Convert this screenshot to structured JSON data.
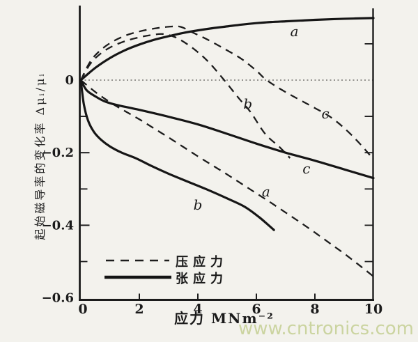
{
  "page": {
    "watermark": "www.cntronics.com"
  },
  "colors": {
    "ink": "#1b1b1b",
    "paper": "#f3f2ed",
    "watermark": "#cbd4a0"
  },
  "chart_data": {
    "type": "line",
    "title": "",
    "xlabel": "应力 MNm⁻²",
    "ylabel": "起始磁导率的变化率 Δμᵢ/μᵢ",
    "xlim": [
      0,
      10
    ],
    "ylim": [
      -0.6,
      0.2
    ],
    "grid": false,
    "zero_line": true,
    "legend_position": "inside-bottom-left",
    "xticks": [
      {
        "v": 0,
        "label": "0"
      },
      {
        "v": 2,
        "label": "2"
      },
      {
        "v": 4,
        "label": "4"
      },
      {
        "v": 6,
        "label": "6"
      },
      {
        "v": 8,
        "label": "8"
      },
      {
        "v": 10,
        "label": "10"
      }
    ],
    "yticks": [
      {
        "v": 0,
        "label": "0"
      },
      {
        "v": -0.2,
        "label": "−0.2"
      },
      {
        "v": -0.4,
        "label": "−0.4"
      },
      {
        "v": -0.6,
        "label": "−0.6"
      }
    ],
    "yticks_minor_left": [
      -0.1,
      -0.3,
      -0.5
    ],
    "yticks_right": [
      0.1,
      -0.1,
      -0.2,
      -0.3,
      -0.4,
      -0.5
    ],
    "legend": [
      {
        "style": "dashed",
        "label": "压应力"
      },
      {
        "style": "solid",
        "label": "张应力"
      }
    ],
    "series": [
      {
        "id": "a-tensile",
        "curve": "a",
        "stress": "张应力",
        "style": "solid",
        "points": [
          [
            0,
            0
          ],
          [
            0.5,
            0.034
          ],
          [
            1,
            0.061
          ],
          [
            1.5,
            0.082
          ],
          [
            2,
            0.098
          ],
          [
            2.5,
            0.111
          ],
          [
            3,
            0.121
          ],
          [
            3.5,
            0.13
          ],
          [
            4,
            0.137
          ],
          [
            4.5,
            0.143
          ],
          [
            5,
            0.148
          ],
          [
            5.5,
            0.153
          ],
          [
            6,
            0.157
          ],
          [
            6.5,
            0.16
          ],
          [
            7,
            0.162
          ],
          [
            7.5,
            0.164
          ],
          [
            8,
            0.166
          ],
          [
            9,
            0.169
          ],
          [
            10,
            0.171
          ]
        ]
      },
      {
        "id": "b-compressive",
        "curve": "b",
        "stress": "压应力",
        "style": "dashed",
        "points": [
          [
            0,
            0
          ],
          [
            0.3,
            0.042
          ],
          [
            0.6,
            0.068
          ],
          [
            1,
            0.09
          ],
          [
            1.5,
            0.107
          ],
          [
            2,
            0.118
          ],
          [
            2.4,
            0.124
          ],
          [
            2.8,
            0.127
          ],
          [
            3.2,
            0.119
          ],
          [
            3.6,
            0.101
          ],
          [
            4,
            0.077
          ],
          [
            4.4,
            0.047
          ],
          [
            4.9,
            0
          ],
          [
            5.4,
            -0.05
          ],
          [
            5.8,
            -0.088
          ],
          [
            6.3,
            -0.148
          ],
          [
            6.8,
            -0.185
          ],
          [
            7.15,
            -0.215
          ]
        ]
      },
      {
        "id": "c-compressive",
        "curve": "c",
        "stress": "压应力",
        "style": "dashed",
        "points": [
          [
            0,
            0
          ],
          [
            0.3,
            0.048
          ],
          [
            0.6,
            0.077
          ],
          [
            1,
            0.102
          ],
          [
            1.5,
            0.122
          ],
          [
            2,
            0.134
          ],
          [
            2.5,
            0.142
          ],
          [
            3,
            0.147
          ],
          [
            3.4,
            0.147
          ],
          [
            3.8,
            0.132
          ],
          [
            4.2,
            0.117
          ],
          [
            4.6,
            0.1
          ],
          [
            5,
            0.082
          ],
          [
            5.5,
            0.058
          ],
          [
            6,
            0.026
          ],
          [
            6.35,
            0
          ],
          [
            7,
            -0.033
          ],
          [
            8,
            -0.077
          ],
          [
            8.5,
            -0.1
          ],
          [
            9,
            -0.132
          ],
          [
            9.5,
            -0.172
          ],
          [
            10,
            -0.218
          ]
        ]
      },
      {
        "id": "a-compressive",
        "curve": "a",
        "stress": "压应力",
        "style": "dashed",
        "points": [
          [
            0,
            0
          ],
          [
            0.5,
            -0.033
          ],
          [
            1,
            -0.061
          ],
          [
            1.5,
            -0.085
          ],
          [
            2,
            -0.108
          ],
          [
            2.5,
            -0.133
          ],
          [
            3,
            -0.158
          ],
          [
            3.5,
            -0.184
          ],
          [
            4,
            -0.21
          ],
          [
            4.5,
            -0.235
          ],
          [
            5,
            -0.26
          ],
          [
            5.5,
            -0.286
          ],
          [
            6,
            -0.312
          ],
          [
            6.5,
            -0.338
          ],
          [
            7,
            -0.365
          ],
          [
            7.5,
            -0.392
          ],
          [
            8,
            -0.42
          ],
          [
            8.5,
            -0.449
          ],
          [
            9,
            -0.478
          ],
          [
            9.5,
            -0.509
          ],
          [
            10,
            -0.541
          ]
        ]
      },
      {
        "id": "b-tensile",
        "curve": "b",
        "stress": "张应力",
        "style": "solid",
        "points": [
          [
            0,
            0
          ],
          [
            0.1,
            -0.065
          ],
          [
            0.25,
            -0.112
          ],
          [
            0.45,
            -0.143
          ],
          [
            0.7,
            -0.165
          ],
          [
            1,
            -0.183
          ],
          [
            1.4,
            -0.2
          ],
          [
            1.9,
            -0.216
          ],
          [
            2.4,
            -0.236
          ],
          [
            3,
            -0.258
          ],
          [
            3.6,
            -0.278
          ],
          [
            4.3,
            -0.301
          ],
          [
            5,
            -0.326
          ],
          [
            5.6,
            -0.349
          ],
          [
            6.1,
            -0.378
          ],
          [
            6.6,
            -0.413
          ]
        ]
      },
      {
        "id": "c-tensile",
        "curve": "c",
        "stress": "张应力",
        "style": "solid",
        "points": [
          [
            0,
            0
          ],
          [
            0.2,
            -0.028
          ],
          [
            0.5,
            -0.045
          ],
          [
            0.8,
            -0.058
          ],
          [
            1.2,
            -0.068
          ],
          [
            2,
            -0.082
          ],
          [
            3,
            -0.101
          ],
          [
            4,
            -0.122
          ],
          [
            5,
            -0.148
          ],
          [
            6,
            -0.175
          ],
          [
            7,
            -0.2
          ],
          [
            8,
            -0.222
          ],
          [
            9,
            -0.246
          ],
          [
            10,
            -0.27
          ]
        ]
      }
    ],
    "annotations": [
      {
        "text": "a",
        "x": 7.3,
        "y": 0.121
      },
      {
        "text": "b",
        "x": 5.71,
        "y": -0.079
      },
      {
        "text": "c",
        "x": 8.36,
        "y": -0.106
      },
      {
        "text": "c",
        "x": 7.71,
        "y": -0.257
      },
      {
        "text": "a",
        "x": 6.33,
        "y": -0.321
      },
      {
        "text": "b",
        "x": 4.0,
        "y": -0.357
      }
    ]
  }
}
